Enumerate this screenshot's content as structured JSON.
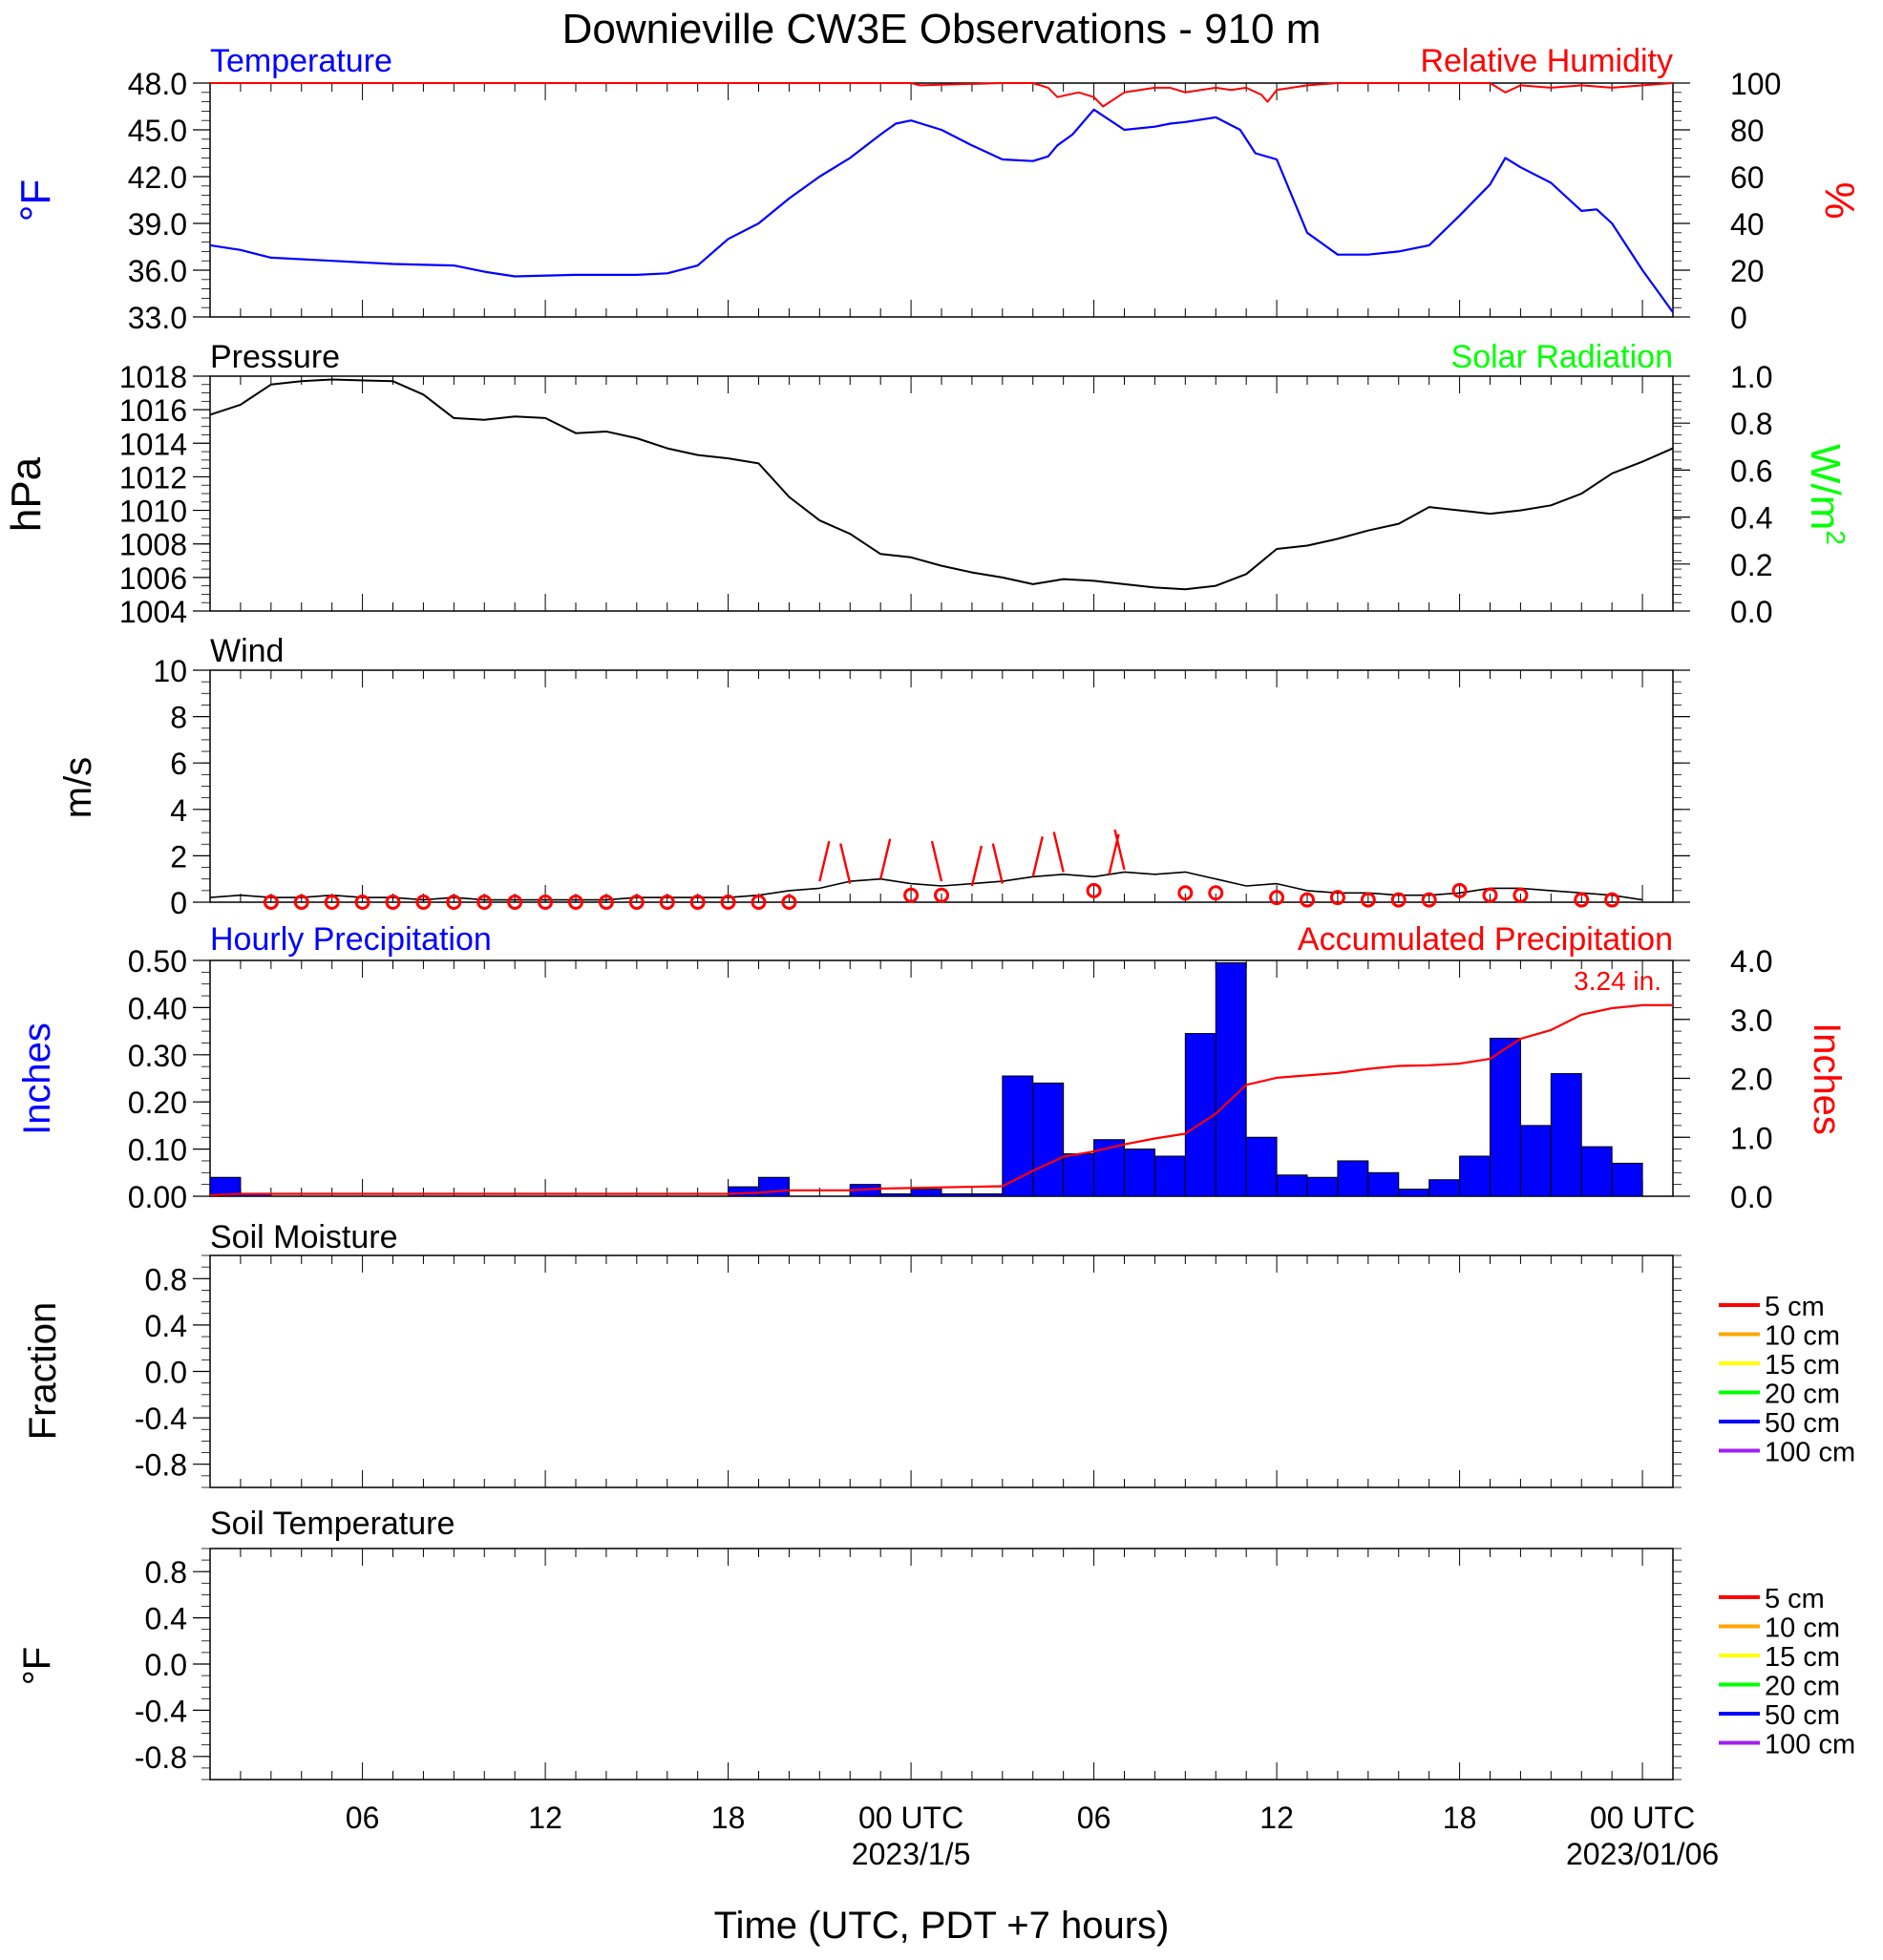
{
  "title": "Downieville CW3E Observations - 910 m",
  "xlabel": "Time (UTC, PDT +7 hours)",
  "colors": {
    "blue": "#0000ff",
    "red": "#ff0000",
    "green": "#00ff00",
    "black": "#000000"
  },
  "x_axis": {
    "range_hours": [
      0,
      48
    ],
    "ticks": [
      {
        "h": 5,
        "label": "06",
        "sub": ""
      },
      {
        "h": 11,
        "label": "12",
        "sub": ""
      },
      {
        "h": 17,
        "label": "18",
        "sub": ""
      },
      {
        "h": 23,
        "label": "00 UTC",
        "sub": "2023/1/5"
      },
      {
        "h": 29,
        "label": "06",
        "sub": ""
      },
      {
        "h": 35,
        "label": "12",
        "sub": ""
      },
      {
        "h": 41,
        "label": "18",
        "sub": ""
      },
      {
        "h": 47,
        "label": "00 UTC",
        "sub": "2023/01/06"
      }
    ]
  },
  "panels": {
    "temperature": {
      "left_title": "Temperature",
      "right_title": "Relative Humidity",
      "left_unit": "°F",
      "right_unit": "%",
      "left_ticks": [
        "33.0",
        "36.0",
        "39.0",
        "42.0",
        "45.0",
        "48.0"
      ],
      "right_ticks": [
        "0",
        "20",
        "40",
        "60",
        "80",
        "100"
      ]
    },
    "pressure": {
      "left_title": "Pressure",
      "right_title": "Solar Radiation",
      "left_unit": "hPa",
      "right_unit_base": "W/m",
      "right_unit_sup": "2",
      "left_ticks": [
        "1004",
        "1006",
        "1008",
        "1010",
        "1012",
        "1014",
        "1016",
        "1018"
      ],
      "right_ticks": [
        "0.0",
        "0.2",
        "0.4",
        "0.6",
        "0.8",
        "1.0"
      ]
    },
    "wind": {
      "left_title": "Wind",
      "left_unit": "m/s",
      "left_ticks": [
        "0",
        "2",
        "4",
        "6",
        "8",
        "10"
      ]
    },
    "precip": {
      "left_title": "Hourly Precipitation",
      "right_title": "Accumulated Precipitation",
      "left_unit": "Inches",
      "right_unit": "Inches",
      "total_label": "3.24 in.",
      "left_ticks": [
        "0.00",
        "0.10",
        "0.20",
        "0.30",
        "0.40",
        "0.50"
      ],
      "right_ticks": [
        "0.0",
        "1.0",
        "2.0",
        "3.0",
        "4.0"
      ]
    },
    "soil_moisture": {
      "left_title": "Soil Moisture",
      "left_unit": "Fraction",
      "left_ticks": [
        "-0.8",
        "-0.4",
        "0.0",
        "0.4",
        "0.8"
      ],
      "legend": [
        {
          "label": "5 cm",
          "color": "#ff0000"
        },
        {
          "label": "10 cm",
          "color": "#ffa500"
        },
        {
          "label": "15 cm",
          "color": "#ffff00"
        },
        {
          "label": "20 cm",
          "color": "#00ff00"
        },
        {
          "label": "50 cm",
          "color": "#0000ff"
        },
        {
          "label": "100 cm",
          "color": "#a020f0"
        }
      ]
    },
    "soil_temperature": {
      "left_title": "Soil Temperature",
      "left_unit": "°F",
      "left_ticks": [
        "-0.8",
        "-0.4",
        "0.0",
        "0.4",
        "0.8"
      ],
      "legend": [
        {
          "label": "5 cm",
          "color": "#ff0000"
        },
        {
          "label": "10 cm",
          "color": "#ffa500"
        },
        {
          "label": "15 cm",
          "color": "#ffff00"
        },
        {
          "label": "20 cm",
          "color": "#00ff00"
        },
        {
          "label": "50 cm",
          "color": "#0000ff"
        },
        {
          "label": "100 cm",
          "color": "#a020f0"
        }
      ]
    }
  },
  "chart_data": [
    {
      "type": "line",
      "title": "Temperature",
      "ylabel": "°F",
      "ylim": [
        33.0,
        48.0
      ],
      "x_unit": "hours since 2023-01-04 01 UTC",
      "series": [
        {
          "name": "Temperature",
          "color": "#0000ff",
          "x": [
            0,
            1,
            2,
            4,
            6,
            8,
            9,
            10,
            12,
            14,
            15,
            16,
            17,
            18,
            19,
            20,
            21,
            22,
            22.5,
            23,
            24,
            25,
            26,
            27,
            27.5,
            27.8,
            28.3,
            29,
            30,
            31,
            31.5,
            32,
            33,
            33.8,
            34.3,
            35,
            36,
            37,
            38,
            39,
            40,
            41,
            42,
            42.5,
            43,
            44,
            45,
            45.5,
            46,
            47,
            48
          ],
          "values": [
            37.6,
            37.3,
            36.8,
            36.6,
            36.4,
            36.3,
            35.9,
            35.6,
            35.7,
            35.7,
            35.8,
            36.3,
            38.0,
            39.0,
            40.6,
            42.0,
            43.2,
            44.7,
            45.4,
            45.6,
            45.0,
            44.0,
            43.1,
            43.0,
            43.3,
            44.0,
            44.7,
            46.3,
            45.0,
            45.2,
            45.4,
            45.5,
            45.8,
            45.0,
            43.5,
            43.1,
            38.4,
            37.0,
            37.0,
            37.2,
            37.6,
            39.5,
            41.5,
            43.2,
            42.6,
            41.6,
            39.8,
            39.9,
            39.0,
            36.0,
            33.3
          ]
        }
      ]
    },
    {
      "type": "line",
      "title": "Relative Humidity",
      "ylabel": "%",
      "ylim": [
        0,
        100
      ],
      "x_unit": "hours since 2023-01-04 01 UTC",
      "series": [
        {
          "name": "Relative Humidity",
          "color": "#ff0000",
          "x": [
            0,
            19,
            23,
            23.3,
            26,
            27,
            27.5,
            27.8,
            28.5,
            29,
            29.3,
            30,
            31,
            31.5,
            32,
            33,
            33.5,
            34,
            34.5,
            34.7,
            35,
            36,
            37,
            39,
            42,
            42.5,
            43,
            44,
            45,
            46,
            47,
            48
          ],
          "values": [
            100,
            100,
            100,
            99,
            100,
            100,
            98,
            94,
            96,
            94,
            90,
            96,
            98,
            98,
            96,
            98,
            97,
            98,
            95,
            92,
            97,
            99,
            100,
            100,
            100,
            96,
            99,
            98,
            99,
            98,
            99,
            100
          ]
        }
      ]
    },
    {
      "type": "line",
      "title": "Pressure",
      "ylabel": "hPa",
      "ylim": [
        1004,
        1018
      ],
      "x_unit": "hours since 2023-01-04 01 UTC",
      "series": [
        {
          "name": "Pressure",
          "color": "#000000",
          "x": [
            0,
            1,
            2,
            3,
            4,
            6,
            7,
            8,
            9,
            10,
            11,
            12,
            13,
            14,
            15,
            16,
            17,
            18,
            19,
            20,
            21,
            22,
            23,
            24,
            25,
            26,
            27,
            28,
            29,
            30,
            31,
            32,
            33,
            34,
            35,
            36,
            37,
            38,
            39,
            40,
            41,
            42,
            43,
            44,
            45,
            46,
            47,
            48
          ],
          "values": [
            1015.7,
            1016.3,
            1017.5,
            1017.7,
            1017.8,
            1017.7,
            1016.9,
            1015.5,
            1015.4,
            1015.6,
            1015.5,
            1014.6,
            1014.7,
            1014.3,
            1013.7,
            1013.3,
            1013.1,
            1012.8,
            1010.8,
            1009.4,
            1008.6,
            1007.4,
            1007.2,
            1006.7,
            1006.3,
            1006.0,
            1005.6,
            1005.9,
            1005.8,
            1005.6,
            1005.4,
            1005.3,
            1005.5,
            1006.2,
            1007.7,
            1007.9,
            1008.3,
            1008.8,
            1009.2,
            1010.2,
            1010.0,
            1009.8,
            1010.0,
            1010.3,
            1011.0,
            1012.2,
            1012.9,
            1013.7
          ]
        }
      ]
    },
    {
      "type": "line",
      "title": "Wind",
      "ylabel": "m/s",
      "ylim": [
        0,
        10
      ],
      "x_unit": "hours since 2023-01-04 01 UTC",
      "series": [
        {
          "name": "Wind",
          "color": "#000000",
          "x": [
            0,
            1,
            2,
            3,
            4,
            5,
            6,
            7,
            8,
            9,
            10,
            11,
            12,
            13,
            14,
            15,
            16,
            17,
            18,
            19,
            20,
            21,
            22,
            23,
            24,
            25,
            26,
            27,
            28,
            29,
            30,
            31,
            32,
            33,
            34,
            35,
            36,
            37,
            38,
            39,
            40,
            41,
            42,
            43,
            44,
            45,
            46,
            47
          ],
          "values": [
            0.2,
            0.3,
            0.2,
            0.2,
            0.3,
            0.2,
            0.2,
            0.1,
            0.2,
            0.1,
            0.1,
            0.1,
            0.1,
            0.1,
            0.2,
            0.2,
            0.2,
            0.2,
            0.3,
            0.5,
            0.6,
            0.9,
            1.0,
            0.8,
            0.7,
            0.8,
            0.9,
            1.1,
            1.2,
            1.1,
            1.3,
            1.2,
            1.3,
            1.0,
            0.7,
            0.8,
            0.5,
            0.4,
            0.4,
            0.3,
            0.3,
            0.4,
            0.6,
            0.6,
            0.5,
            0.4,
            0.3,
            0.1
          ]
        }
      ],
      "direction_markers": {
        "calm_x": [
          2,
          3,
          4,
          5,
          6,
          7,
          8,
          9,
          10,
          11,
          12,
          13,
          14,
          15,
          16,
          17,
          18,
          19,
          23,
          24,
          29,
          32,
          33,
          35,
          36,
          37,
          38,
          39,
          40,
          41,
          42,
          43,
          45,
          46
        ],
        "calm_values": [
          0,
          0,
          0,
          0,
          0,
          0,
          0,
          0,
          0,
          0,
          0,
          0,
          0,
          0,
          0,
          0,
          0,
          0,
          0.3,
          0.3,
          0.5,
          0.4,
          0.4,
          0.2,
          0.1,
          0.2,
          0.1,
          0.1,
          0.1,
          0.5,
          0.3,
          0.3,
          0.1,
          0.1
        ],
        "barb_x": [
          20,
          21,
          22,
          24,
          25,
          26,
          27,
          28,
          29.5,
          30
        ],
        "barb_values": [
          0.9,
          0.8,
          1.0,
          0.9,
          0.7,
          0.8,
          1.1,
          1.3,
          1.2,
          1.4
        ]
      }
    },
    {
      "type": "bar",
      "title": "Hourly Precipitation",
      "ylabel": "Inches",
      "ylim": [
        0,
        0.5
      ],
      "x_unit": "hours since 2023-01-04 01 UTC",
      "categories": [
        0,
        1,
        2,
        3,
        4,
        5,
        6,
        7,
        8,
        9,
        10,
        11,
        12,
        13,
        14,
        15,
        16,
        17,
        18,
        19,
        20,
        21,
        22,
        23,
        24,
        25,
        26,
        27,
        28,
        29,
        30,
        31,
        32,
        33,
        34,
        35,
        36,
        37,
        38,
        39,
        40,
        41,
        42,
        43,
        44,
        45,
        46,
        47
      ],
      "series": [
        {
          "name": "Hourly Precipitation",
          "color": "#0000ff",
          "values": [
            0.04,
            0.005,
            0,
            0,
            0,
            0,
            0,
            0,
            0,
            0,
            0,
            0,
            0,
            0,
            0,
            0,
            0,
            0.02,
            0.04,
            0,
            0,
            0.025,
            0.005,
            0.015,
            0.005,
            0.005,
            0.255,
            0.24,
            0.09,
            0.12,
            0.1,
            0.085,
            0.345,
            0.495,
            0.125,
            0.045,
            0.04,
            0.075,
            0.05,
            0.015,
            0.035,
            0.085,
            0.335,
            0.15,
            0.26,
            0.105,
            0.07,
            0
          ]
        }
      ]
    },
    {
      "type": "line",
      "title": "Accumulated Precipitation",
      "ylabel": "Inches",
      "ylim": [
        0,
        4.0
      ],
      "x_unit": "hours since 2023-01-04 01 UTC",
      "series": [
        {
          "name": "Accumulated Precipitation",
          "color": "#ff0000",
          "x": [
            0,
            1,
            17,
            18,
            19,
            21,
            22,
            23,
            24,
            25,
            26,
            27,
            28,
            29,
            30,
            31,
            32,
            33,
            34,
            35,
            36,
            37,
            38,
            39,
            40,
            41,
            42,
            43,
            44,
            45,
            46,
            47,
            48
          ],
          "values": [
            0.02,
            0.04,
            0.04,
            0.06,
            0.1,
            0.1,
            0.13,
            0.14,
            0.15,
            0.16,
            0.17,
            0.43,
            0.67,
            0.76,
            0.88,
            0.98,
            1.06,
            1.4,
            1.89,
            2.01,
            2.05,
            2.09,
            2.16,
            2.21,
            2.22,
            2.25,
            2.33,
            2.67,
            2.82,
            3.08,
            3.19,
            3.24,
            3.24
          ]
        }
      ]
    },
    {
      "type": "line",
      "title": "Soil Moisture",
      "ylabel": "Fraction",
      "ylim": [
        -1,
        1
      ],
      "series": []
    },
    {
      "type": "line",
      "title": "Soil Temperature",
      "ylabel": "°F",
      "ylim": [
        -1,
        1
      ],
      "series": []
    }
  ]
}
